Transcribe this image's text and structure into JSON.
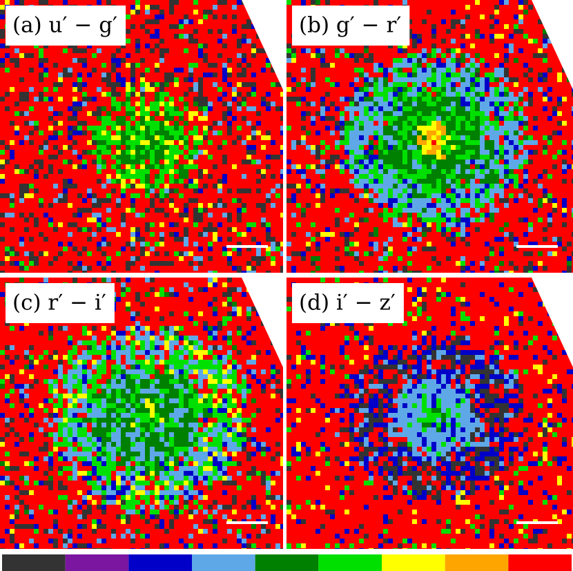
{
  "panels": [
    {
      "label": "(a) u′ − g′"
    },
    {
      "label": "(b) g′ − r′"
    },
    {
      "label": "(c) r′ − i′"
    },
    {
      "label": "(d) i′ − z′"
    }
  ],
  "colorbar": {
    "colors": [
      "#333333",
      "#7a16a0",
      "#0000c8",
      "#5fa8e8",
      "#008000",
      "#00e000",
      "#ffff00",
      "#ffa500",
      "#ff0000"
    ]
  }
}
